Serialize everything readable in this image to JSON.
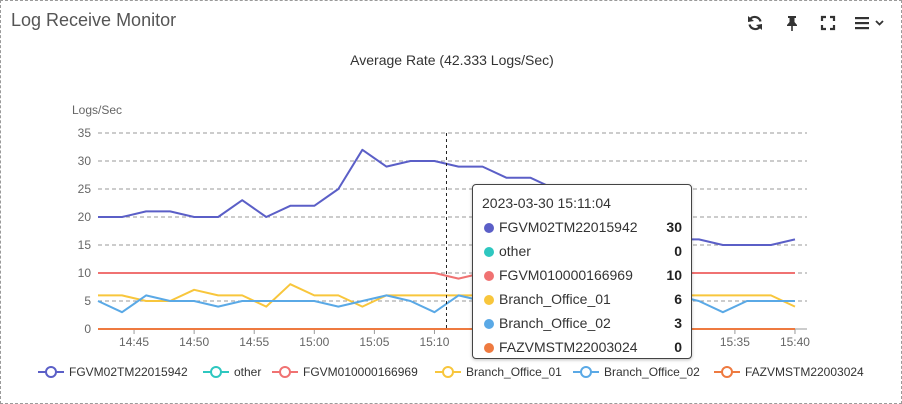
{
  "widget": {
    "title": "Log Receive Monitor"
  },
  "toolbar": [
    {
      "name": "refresh-icon"
    },
    {
      "name": "pin-icon"
    },
    {
      "name": "fullscreen-icon"
    },
    {
      "name": "menu-icon"
    }
  ],
  "chart_title": "Average Rate (42.333 Logs/Sec)",
  "tooltip": {
    "timestamp": "2023-03-30 15:11:04",
    "rows": [
      {
        "name": "FGVM02TM22015942",
        "value": "30"
      },
      {
        "name": "other",
        "value": "0"
      },
      {
        "name": "FGVM010000166969",
        "value": "10"
      },
      {
        "name": "Branch_Office_01",
        "value": "6"
      },
      {
        "name": "Branch_Office_02",
        "value": "3"
      },
      {
        "name": "FAZVMSTM22003024",
        "value": "0"
      }
    ]
  },
  "chart_data": {
    "type": "line",
    "ylabel": "Logs/Sec",
    "ylim": [
      0,
      35
    ],
    "yticks": [
      0,
      5,
      10,
      15,
      20,
      25,
      30,
      35
    ],
    "x_ticks": [
      "14:45",
      "14:50",
      "14:55",
      "15:00",
      "15:05",
      "15:10",
      "15:15",
      "15:20",
      "15:25",
      "15:30",
      "15:35",
      "15:40"
    ],
    "x_range": [
      "14:42",
      "15:41"
    ],
    "x": [
      "14:42",
      "14:44",
      "14:46",
      "14:48",
      "14:50",
      "14:52",
      "14:54",
      "14:56",
      "14:58",
      "15:00",
      "15:02",
      "15:04",
      "15:06",
      "15:08",
      "15:10",
      "15:12",
      "15:14",
      "15:16",
      "15:18",
      "15:20",
      "15:22",
      "15:24",
      "15:26",
      "15:28",
      "15:30",
      "15:32",
      "15:34",
      "15:36",
      "15:38",
      "15:40"
    ],
    "highlight_x": "15:11",
    "grid": "horizontal dashed",
    "legend_position": "bottom",
    "series": [
      {
        "name": "FGVM02TM22015942",
        "color": "#5b5fc7",
        "values": [
          20,
          20,
          21,
          21,
          20,
          20,
          23,
          20,
          22,
          22,
          25,
          32,
          29,
          30,
          30,
          29,
          29,
          27,
          27,
          25,
          20,
          16,
          15,
          16,
          16,
          16,
          15,
          15,
          15,
          16
        ]
      },
      {
        "name": "other",
        "color": "#2ec7c0",
        "values": [
          0,
          0,
          0,
          0,
          0,
          0,
          0,
          0,
          0,
          0,
          0,
          0,
          0,
          0,
          0,
          0,
          0,
          0,
          0,
          0,
          0,
          0,
          0,
          0,
          0,
          0,
          0,
          0,
          0,
          0
        ]
      },
      {
        "name": "FGVM010000166969",
        "color": "#f07272",
        "values": [
          10,
          10,
          10,
          10,
          10,
          10,
          10,
          10,
          10,
          10,
          10,
          10,
          10,
          10,
          10,
          9,
          10,
          10,
          10,
          10,
          10,
          10,
          10,
          10,
          10,
          10,
          10,
          10,
          10,
          10
        ]
      },
      {
        "name": "Branch_Office_01",
        "color": "#f8c63c",
        "values": [
          6,
          6,
          5,
          5,
          7,
          6,
          6,
          4,
          8,
          6,
          6,
          4,
          6,
          6,
          6,
          6,
          6,
          6,
          6,
          6,
          8,
          6,
          6,
          6,
          6,
          6,
          6,
          6,
          6,
          4
        ]
      },
      {
        "name": "Branch_Office_02",
        "color": "#5aa9e6",
        "values": [
          5,
          3,
          6,
          5,
          5,
          4,
          5,
          5,
          5,
          5,
          4,
          5,
          6,
          5,
          3,
          6,
          5,
          5,
          5,
          5,
          5,
          5,
          5,
          5,
          6,
          5,
          3,
          5,
          5,
          5
        ]
      },
      {
        "name": "FAZVMSTM22003024",
        "color": "#ee7a40",
        "values": [
          0,
          0,
          0,
          0,
          0,
          0,
          0,
          0,
          0,
          0,
          0,
          0,
          0,
          0,
          0,
          0,
          0,
          0,
          0,
          0,
          0,
          0,
          0,
          0,
          0,
          0,
          0,
          0,
          0,
          0
        ]
      }
    ]
  }
}
